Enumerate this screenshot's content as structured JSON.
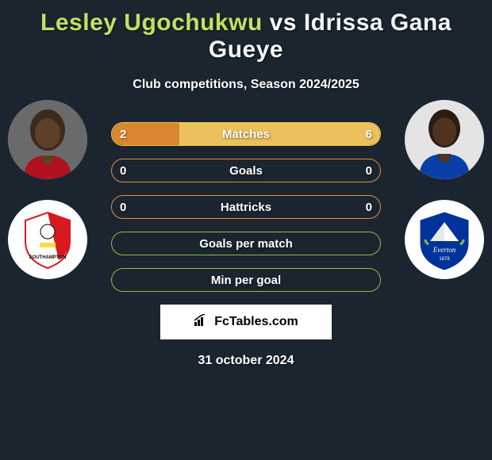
{
  "background_color": "#1a2530",
  "title": {
    "text_left": "Lesley Ugochukwu",
    "vs": "vs",
    "text_right": "Idrissa Gana Gueye",
    "color_left": "#bde360",
    "color_right": "#f5f5f5",
    "fontsize": 30
  },
  "subtitle": {
    "text": "Club competitions, Season 2024/2025",
    "fontsize": 16
  },
  "player_left": {
    "name": "Lesley Ugochukwu",
    "photo_bg": "#777777"
  },
  "player_right": {
    "name": "Idrissa Gana Gueye",
    "photo_bg": "#e8e8e8"
  },
  "club_left": {
    "name": "Southampton",
    "primary": "#d71920",
    "secondary": "#ffffff"
  },
  "club_right": {
    "name": "Everton",
    "primary": "#003399",
    "secondary": "#ffffff"
  },
  "stats": [
    {
      "label": "Matches",
      "left_value": "2",
      "right_value": "6",
      "left_pct": 25,
      "right_pct": 75,
      "border_color": "#eac15a",
      "left_fill": "#d9862e",
      "right_fill": "#eac15a"
    },
    {
      "label": "Goals",
      "left_value": "0",
      "right_value": "0",
      "left_pct": 0,
      "right_pct": 0,
      "border_color": "#e88b3a",
      "left_fill": "#d9862e",
      "right_fill": "#eac15a"
    },
    {
      "label": "Hattricks",
      "left_value": "0",
      "right_value": "0",
      "left_pct": 0,
      "right_pct": 0,
      "border_color": "#e88b3a",
      "left_fill": "#d9862e",
      "right_fill": "#eac15a"
    },
    {
      "label": "Goals per match",
      "left_value": "",
      "right_value": "",
      "left_pct": 0,
      "right_pct": 0,
      "border_color": "#8dbf3f",
      "left_fill": "#8dbf3f",
      "right_fill": "#8dbf3f"
    },
    {
      "label": "Min per goal",
      "left_value": "",
      "right_value": "",
      "left_pct": 0,
      "right_pct": 0,
      "border_color": "#8dbf3f",
      "left_fill": "#8dbf3f",
      "right_fill": "#8dbf3f"
    }
  ],
  "watermark": {
    "text": "FcTables.com",
    "icon": "chart-icon"
  },
  "date": {
    "text": "31 october 2024"
  }
}
